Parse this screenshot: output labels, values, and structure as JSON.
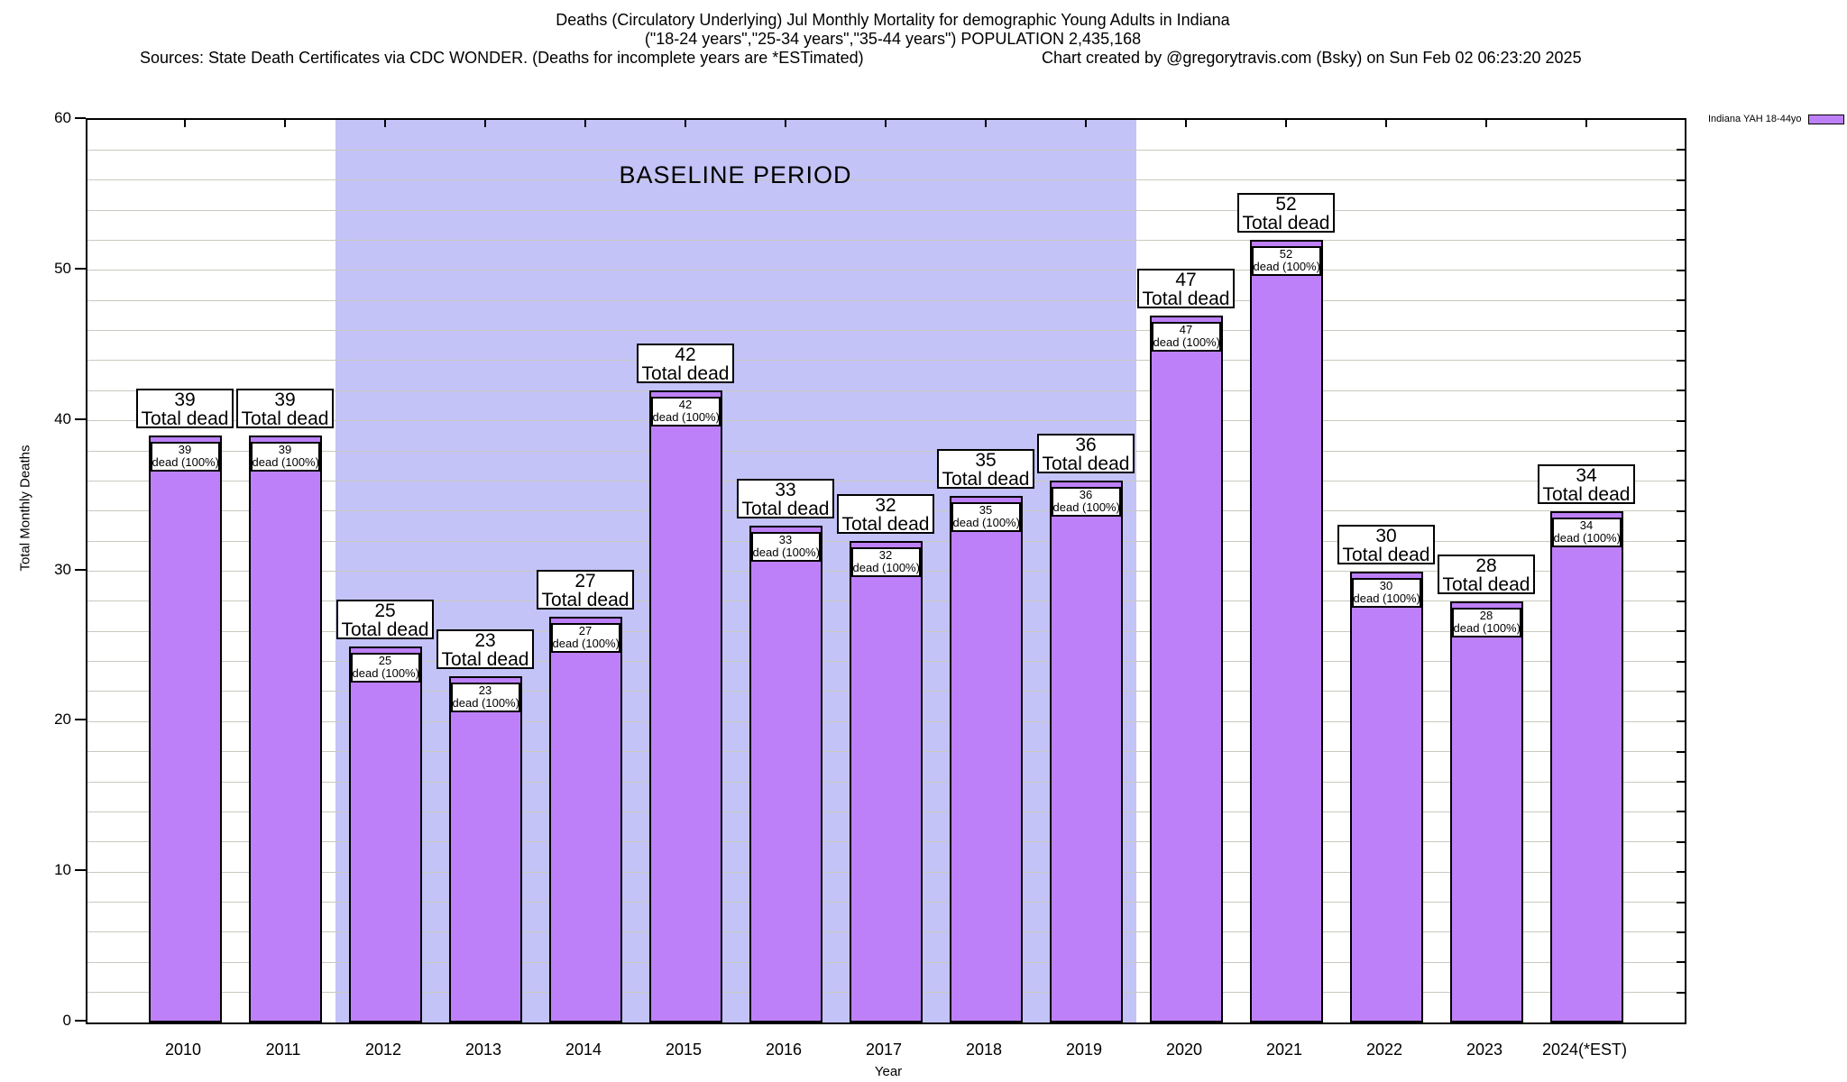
{
  "header": {
    "title_line1": "Deaths (Circulatory Underlying) Jul Monthly Mortality for demographic Young Adults in Indiana",
    "title_line2": "(\"18-24 years\",\"25-34 years\",\"35-44 years\") POPULATION 2,435,168",
    "sources": "Sources: State Death Certificates via CDC WONDER. (Deaths for incomplete years are *ESTimated)",
    "credit": "Chart created by @gregorytravis.com (Bsky) on Sun Feb 02 06:23:20 2025"
  },
  "legend": {
    "label": "Indiana YAH 18-44yo"
  },
  "colors": {
    "bar_fill": "#bd80f8",
    "bar_border": "#000000",
    "baseline_shade": "#c3c3f8",
    "grid": "#c9c9bf",
    "axis": "#000000"
  },
  "chart_data": {
    "type": "bar",
    "title": "Deaths (Circulatory Underlying) Jul Monthly Mortality for demographic Young Adults in Indiana",
    "xlabel": "Year",
    "ylabel": "Total Monthly Deaths",
    "ylim": [
      0,
      60
    ],
    "ytick_major_interval": 10,
    "grid_interval": 2,
    "grid": true,
    "legend_position": "top-right-outside",
    "categories": [
      "2010",
      "2011",
      "2012",
      "2013",
      "2014",
      "2015",
      "2016",
      "2017",
      "2018",
      "2019",
      "2020",
      "2021",
      "2022",
      "2023",
      "2024(*EST)"
    ],
    "series": [
      {
        "name": "Indiana YAH 18-44yo",
        "values": [
          39,
          39,
          25,
          23,
          27,
          42,
          33,
          32,
          35,
          36,
          47,
          52,
          30,
          28,
          34
        ]
      }
    ],
    "bar_annotation_top_suffix": "Total dead",
    "bar_annotation_inner_suffix": "dead (100%)",
    "baseline_period": {
      "label": "BASELINE PERIOD",
      "from_category": "2012",
      "to_category": "2019",
      "from_index": 2,
      "to_index": 9
    }
  }
}
